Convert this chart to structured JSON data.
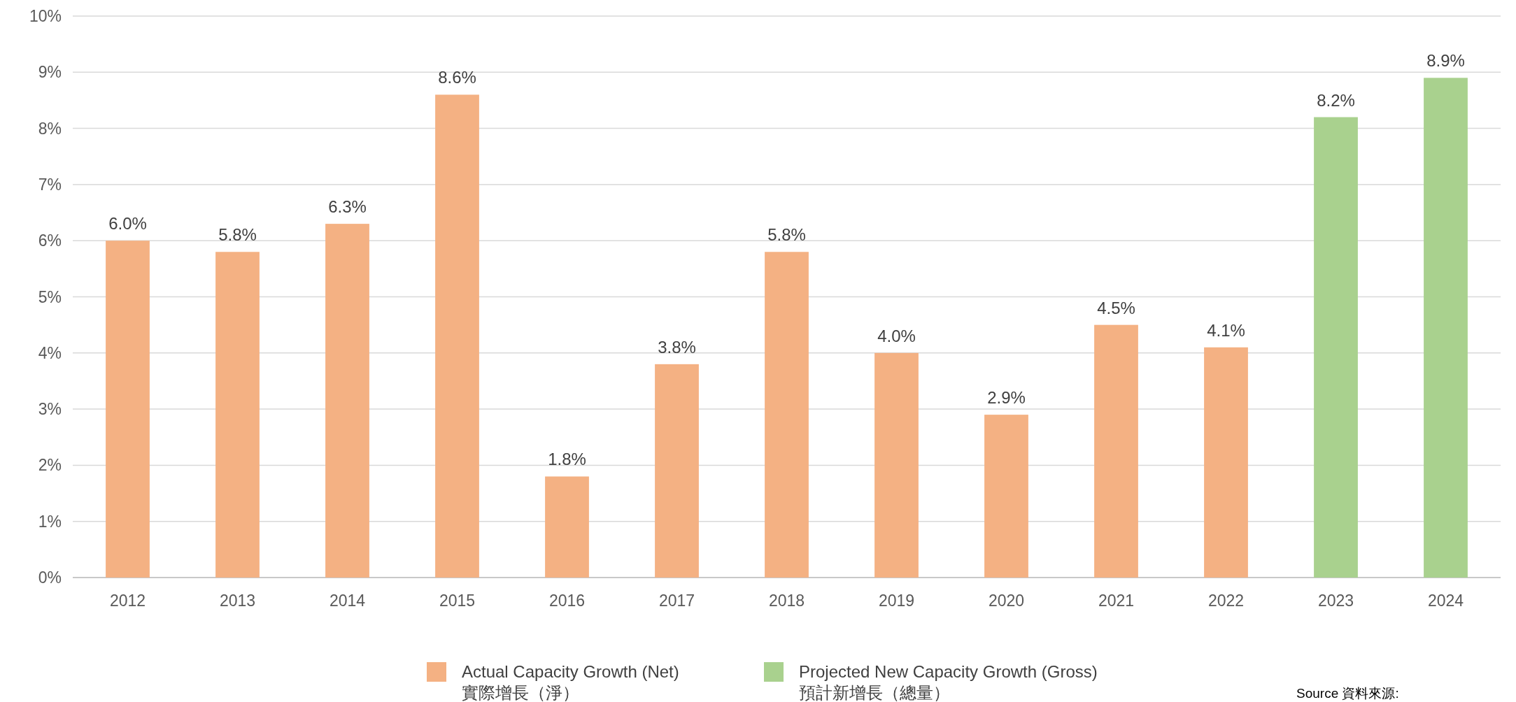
{
  "chart_data": {
    "type": "bar",
    "categories": [
      "2012",
      "2013",
      "2014",
      "2015",
      "2016",
      "2017",
      "2018",
      "2019",
      "2020",
      "2021",
      "2022",
      "2023",
      "2024"
    ],
    "series": [
      {
        "name": "Actual Capacity Growth (Net)\n實際增長（淨）",
        "color": "#f4b183",
        "values": [
          6.0,
          5.8,
          6.3,
          8.6,
          1.8,
          3.8,
          5.8,
          4.0,
          2.9,
          4.5,
          4.1,
          null,
          null
        ],
        "value_labels": [
          "6.0%",
          "5.8%",
          "6.3%",
          "8.6%",
          "1.8%",
          "3.8%",
          "5.8%",
          "4.0%",
          "2.9%",
          "4.5%",
          "4.1%",
          null,
          null
        ]
      },
      {
        "name": "Projected New Capacity Growth (Gross)\n預計新增長（總量）",
        "color": "#a9d18e",
        "values": [
          null,
          null,
          null,
          null,
          null,
          null,
          null,
          null,
          null,
          null,
          null,
          8.2,
          8.9
        ],
        "value_labels": [
          null,
          null,
          null,
          null,
          null,
          null,
          null,
          null,
          null,
          null,
          null,
          "8.2%",
          "8.9%"
        ]
      }
    ],
    "ylim": [
      0,
      10
    ],
    "yticks": [
      {
        "value": 0,
        "label": "0%"
      },
      {
        "value": 1,
        "label": "1%"
      },
      {
        "value": 2,
        "label": "2%"
      },
      {
        "value": 3,
        "label": "3%"
      },
      {
        "value": 4,
        "label": "4%"
      },
      {
        "value": 5,
        "label": "5%"
      },
      {
        "value": 6,
        "label": "6%"
      },
      {
        "value": 7,
        "label": "7%"
      },
      {
        "value": 8,
        "label": "8%"
      },
      {
        "value": 9,
        "label": "9%"
      },
      {
        "value": 10,
        "label": "10%"
      }
    ],
    "grid": "y",
    "legend": "bottom",
    "annotations": [
      "Source 資料來源:"
    ]
  }
}
